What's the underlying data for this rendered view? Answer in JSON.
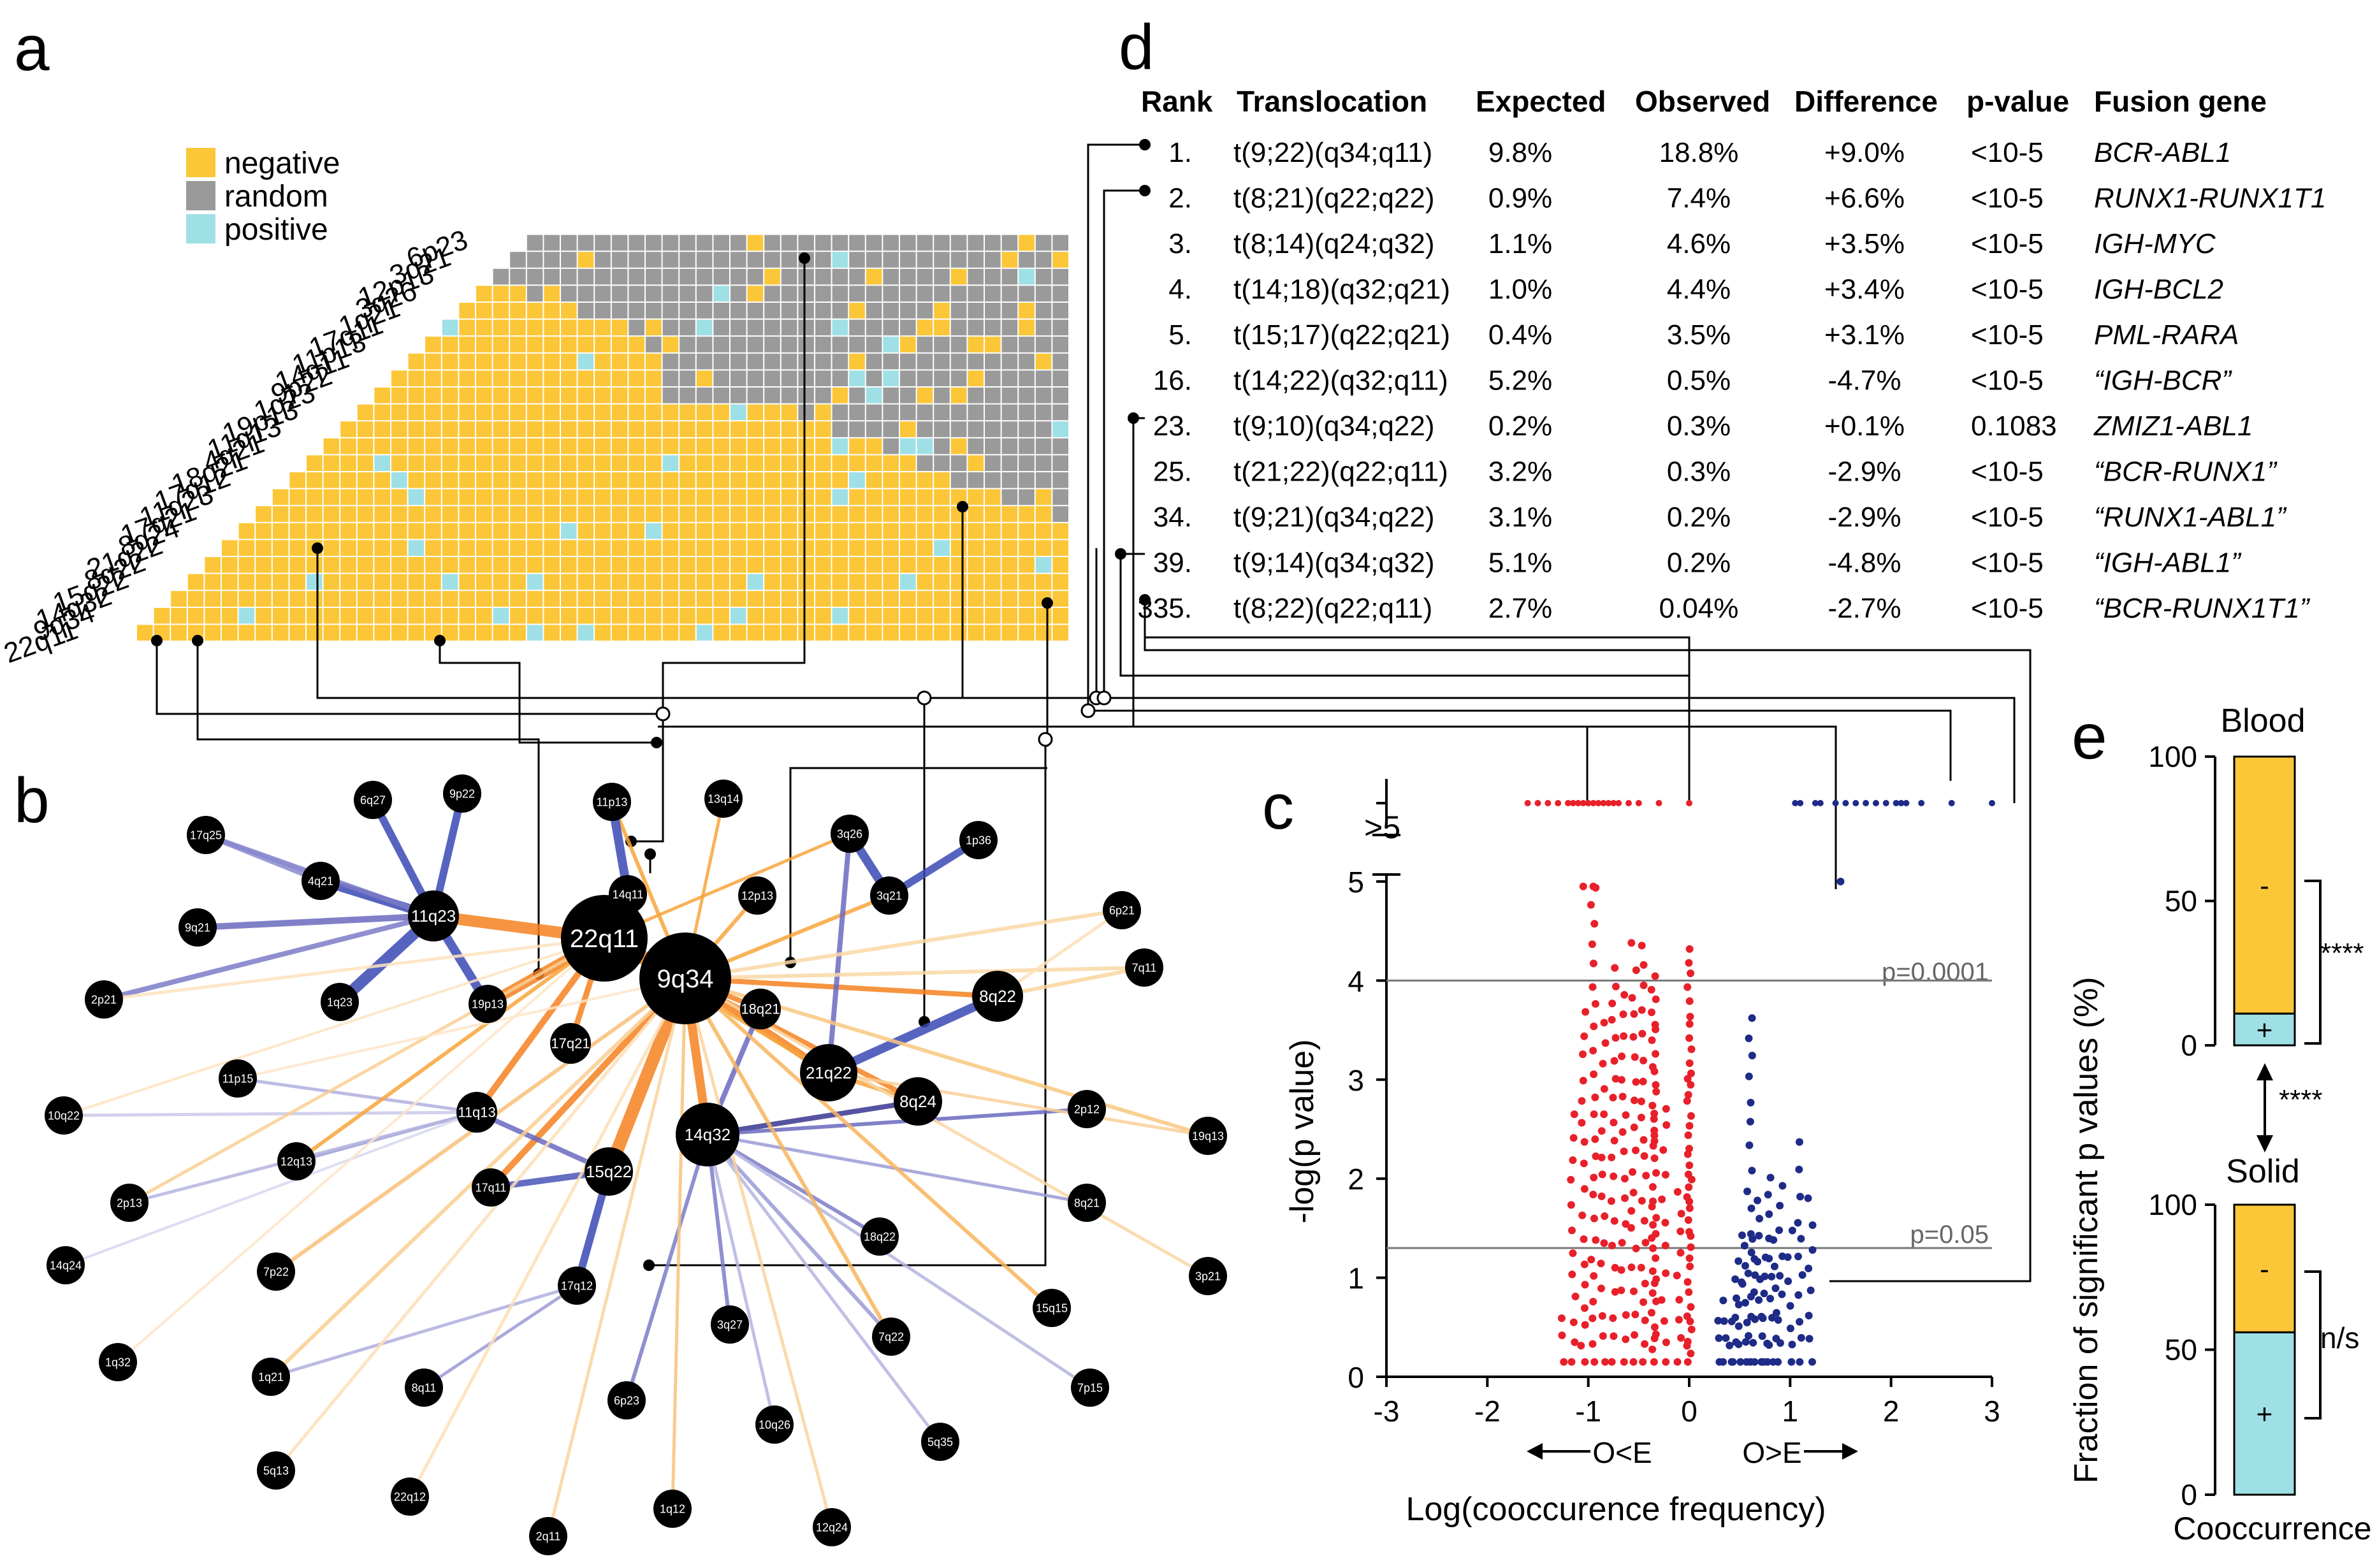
{
  "panels": {
    "a": "a",
    "b": "b",
    "c": "c",
    "d": "d",
    "e": "e"
  },
  "chart_data": [
    {
      "panel": "a",
      "type": "heatmap",
      "title": "",
      "rows": [
        "22q11",
        "9q34",
        "14q32",
        "15q22",
        "8q22",
        "21q22",
        "8q24",
        "17q21",
        "11q23",
        "17q12",
        "18q21",
        "4q21",
        "11q13",
        "19p13",
        "1q23",
        "9p22",
        "14q11",
        "11p13",
        "17q11",
        "1q21",
        "3q26",
        "12p13",
        "3q21",
        "6p23"
      ],
      "legend": [
        {
          "label": "negative",
          "color": "#fbc637"
        },
        {
          "label": "random",
          "color": "#9a9a9a"
        },
        {
          "label": "positive",
          "color": "#9ee0e6"
        }
      ],
      "rows_from_bottom_codes": [
        "p",
        "ny",
        "yyy",
        "yypyy",
        "yyyyyyy",
        "yyyyyyyyy",
        "yyyyyyyyyyy",
        "yyyyyyyyyyyyy",
        "yyyyyyyyyyyyyyy",
        "yyyyyyyyyyyyyyyyy",
        "yyyyyyyyyyyyyyyyyyy",
        "yyyyyyyyyyyyyyyyyyyyy",
        "yyyyyyyyyyyyyyyyyyyyyyy"
      ]
    },
    {
      "panel": "b",
      "type": "network",
      "nodes": [
        "22q11",
        "9q34",
        "14q32",
        "15q22",
        "21q22",
        "8q24",
        "8q22",
        "11q23",
        "18q21",
        "3q21",
        "3q26",
        "12p13",
        "14q11",
        "11p13",
        "13q14",
        "17q21",
        "11q13",
        "19p13",
        "1q23",
        "4q21",
        "6q27",
        "9p22",
        "17q25",
        "9q21",
        "2p21",
        "11p15",
        "10q22",
        "12q13",
        "2p13",
        "14q24",
        "1q32",
        "7p22",
        "17q11",
        "17q12",
        "1q21",
        "8q11",
        "6p23",
        "5q13",
        "22q12",
        "2q11",
        "1q12",
        "10q26",
        "12q24",
        "5q35",
        "7p15",
        "15q15",
        "3q27",
        "18q22",
        "7q22",
        "8q21",
        "3p21",
        "2p12",
        "19q13",
        "7q11",
        "6p21",
        "1p36"
      ]
    },
    {
      "panel": "c",
      "type": "scatter",
      "xlabel": "Log(cooccurence frequency)",
      "ylabel": "-log(p value)",
      "xlim": [
        -3,
        3
      ],
      "ylim": [
        0,
        5
      ],
      "x_ticks": [
        "-3",
        "-2",
        "-1",
        "0",
        "1",
        "2",
        "3"
      ],
      "y_ticks": [
        "0",
        "1",
        "2",
        "3",
        "4",
        "5"
      ],
      "y_break_label": ">5",
      "thresholds": [
        {
          "y": 4,
          "label": "p=0.0001"
        },
        {
          "y": 1.3,
          "label": "p=0.05"
        }
      ],
      "arrow_left": "O<E",
      "arrow_right": "O>E",
      "series": [
        {
          "name": "O<E (negative)",
          "color": "#e8202a",
          "column_x": [
            -1.25,
            -1.15,
            -1.05,
            -0.95,
            -0.85,
            -0.75,
            -0.65,
            -0.55,
            -0.45,
            -0.35,
            -0.25,
            -0.1,
            0.0
          ],
          "column_ymax": [
            0.8,
            2.8,
            3.7,
            5.0,
            3.7,
            4.3,
            3.9,
            4.6,
            4.5,
            4.1,
            2.8,
            1.9,
            4.4
          ],
          "above5_x": [
            -1.6,
            -1.5,
            -1.4,
            -1.3,
            -1.2,
            -1.15,
            -1.1,
            -1.05,
            -1.0,
            -0.95,
            -0.9,
            -0.85,
            -0.8,
            -0.75,
            -0.7,
            -0.6,
            -0.5,
            -0.3,
            0.0
          ]
        },
        {
          "name": "O>E (positive)",
          "color": "#1e2b87",
          "column_x": [
            0.3,
            0.35,
            0.4,
            0.45,
            0.5,
            0.55,
            0.6,
            0.65,
            0.7,
            0.75,
            0.8,
            0.85,
            0.9,
            1.0,
            1.1,
            1.2
          ],
          "column_ymax": [
            0.6,
            0.9,
            0.6,
            1.1,
            1.6,
            1.5,
            3.8,
            1.4,
            1.9,
            1.4,
            2.2,
            1.5,
            2.1,
            1.5,
            2.4,
            1.9
          ],
          "above5_x": [
            1.05,
            1.1,
            1.25,
            1.3,
            1.45,
            1.55,
            1.65,
            1.75,
            1.85,
            1.95,
            2.05,
            2.1,
            2.15,
            2.3,
            2.6,
            3.0
          ]
        }
      ],
      "outliers": [
        {
          "x": 1.5,
          "y": 5.0
        }
      ]
    },
    {
      "panel": "d",
      "type": "table",
      "headers": [
        "Rank",
        "Translocation",
        "Expected",
        "Observed",
        "Difference",
        "p-value",
        "Fusion gene"
      ],
      "rows": [
        {
          "rank": "1.",
          "translocation": "t(9;22)(q34;q11)",
          "expected": "9.8%",
          "observed": "18.8%",
          "difference": "+9.0%",
          "pvalue": "<10-5",
          "fusion": "BCR-ABL1"
        },
        {
          "rank": "2.",
          "translocation": "t(8;21)(q22;q22)",
          "expected": "0.9%",
          "observed": "7.4%",
          "difference": "+6.6%",
          "pvalue": "<10-5",
          "fusion": "RUNX1-RUNX1T1"
        },
        {
          "rank": "3.",
          "translocation": "t(8;14)(q24;q32)",
          "expected": "1.1%",
          "observed": "4.6%",
          "difference": "+3.5%",
          "pvalue": "<10-5",
          "fusion": "IGH-MYC"
        },
        {
          "rank": "4.",
          "translocation": "t(14;18)(q32;q21)",
          "expected": "1.0%",
          "observed": "4.4%",
          "difference": "+3.4%",
          "pvalue": "<10-5",
          "fusion": "IGH-BCL2"
        },
        {
          "rank": "5.",
          "translocation": "t(15;17)(q22;q21)",
          "expected": "0.4%",
          "observed": "3.5%",
          "difference": "+3.1%",
          "pvalue": "<10-5",
          "fusion": "PML-RARA"
        },
        {
          "rank": "16.",
          "translocation": "t(14;22)(q32;q11)",
          "expected": "5.2%",
          "observed": "0.5%",
          "difference": "-4.7%",
          "pvalue": "<10-5",
          "fusion": "“IGH-BCR”"
        },
        {
          "rank": "23.",
          "translocation": "t(9;10)(q34;q22)",
          "expected": "0.2%",
          "observed": "0.3%",
          "difference": "+0.1%",
          "pvalue": "0.1083",
          "fusion": "ZMIZ1-ABL1"
        },
        {
          "rank": "25.",
          "translocation": "t(21;22)(q22;q11)",
          "expected": "3.2%",
          "observed": "0.3%",
          "difference": "-2.9%",
          "pvalue": "<10-5",
          "fusion": "“BCR-RUNX1”"
        },
        {
          "rank": "34.",
          "translocation": "t(9;21)(q34;q22)",
          "expected": "3.1%",
          "observed": "0.2%",
          "difference": "-2.9%",
          "pvalue": "<10-5",
          "fusion": "“RUNX1-ABL1”"
        },
        {
          "rank": "39.",
          "translocation": "t(9;14)(q34;q32)",
          "expected": "5.1%",
          "observed": "0.2%",
          "difference": "-4.8%",
          "pvalue": "<10-5",
          "fusion": "“IGH-ABL1”"
        },
        {
          "rank": "335.",
          "translocation": "t(8;22)(q22;q11)",
          "expected": "2.7%",
          "observed": "0.04%",
          "difference": "-2.7%",
          "pvalue": "<10-5",
          "fusion": "“BCR-RUNX1T1”"
        }
      ]
    },
    {
      "panel": "e",
      "type": "bar",
      "ylabel": "Fraction of significant p values (%)",
      "xlabel": "Cooccurrence",
      "ylim": [
        0,
        100
      ],
      "y_ticks": [
        "0",
        "50",
        "100"
      ],
      "categories": [
        "Blood",
        "Solid"
      ],
      "series": [
        {
          "name": "+",
          "color": "#9ee0e6",
          "values": [
            11,
            56
          ]
        },
        {
          "name": "-",
          "color": "#fbc637",
          "values": [
            89,
            44
          ]
        }
      ],
      "significance": {
        "blood": "****",
        "solid": "n/s",
        "between": "****"
      }
    }
  ]
}
